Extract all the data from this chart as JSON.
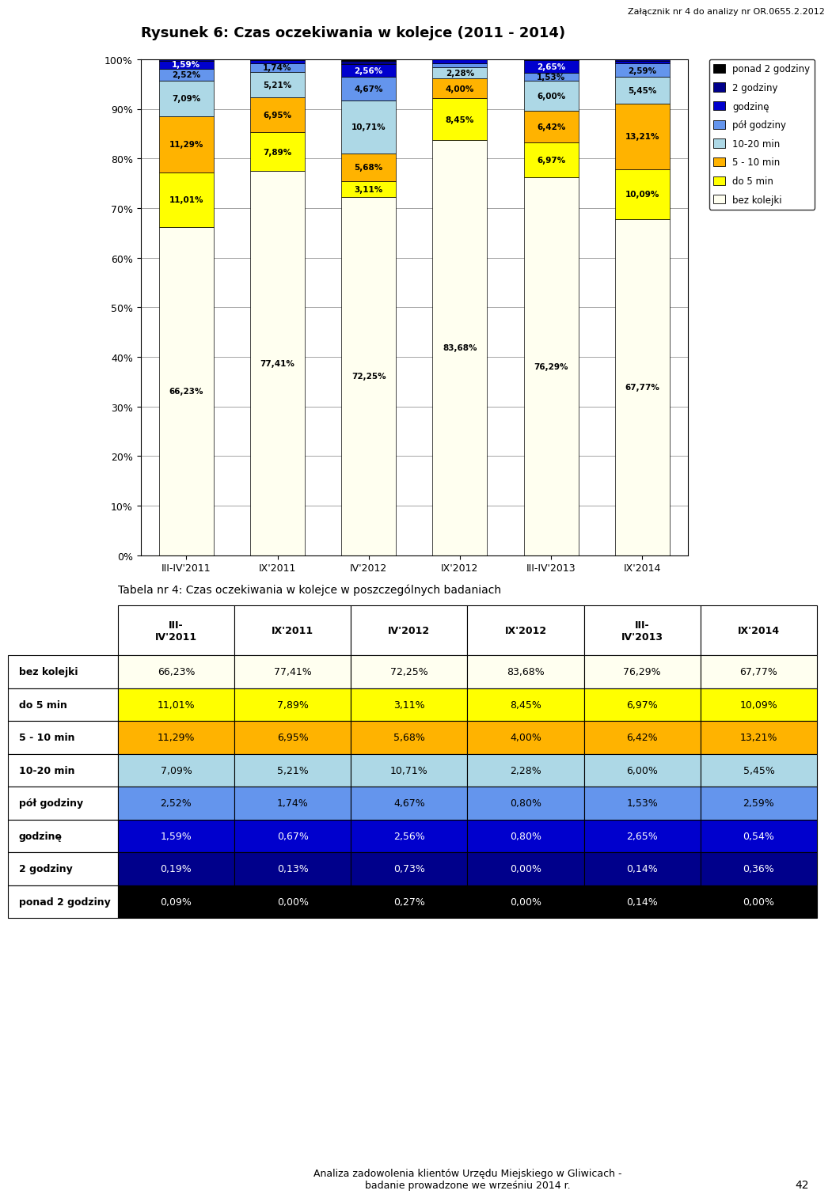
{
  "title": "Rysunek 6: Czas oczekiwania w kolejce (2011 - 2014)",
  "header_text": "Załącznik nr 4 do analizy nr OR.0655.2.2012",
  "categories": [
    "III-IV'2011",
    "IX'2011",
    "IV'2012",
    "IX'2012",
    "III-IV'2013",
    "IX'2014"
  ],
  "series": [
    {
      "label": "bez kolejki",
      "color": "#FFFFF0",
      "values": [
        66.23,
        77.41,
        72.25,
        83.68,
        76.29,
        67.77
      ]
    },
    {
      "label": "do 5 min",
      "color": "#FFFF00",
      "values": [
        11.01,
        7.89,
        3.11,
        8.45,
        6.97,
        10.09
      ]
    },
    {
      "label": "5 - 10 min",
      "color": "#FFB300",
      "values": [
        11.29,
        6.95,
        5.68,
        4.0,
        6.42,
        13.21
      ]
    },
    {
      "label": "10-20 min",
      "color": "#ADD8E6",
      "values": [
        7.09,
        5.21,
        10.71,
        2.28,
        6.0,
        5.45
      ]
    },
    {
      "label": "pół godziny",
      "color": "#6495ED",
      "values": [
        2.52,
        1.74,
        4.67,
        0.8,
        1.53,
        2.59
      ]
    },
    {
      "label": "godzinę",
      "color": "#0000CD",
      "values": [
        1.59,
        0.67,
        2.56,
        0.8,
        2.65,
        0.54
      ]
    },
    {
      "label": "2 godziny",
      "color": "#00008B",
      "values": [
        0.19,
        0.13,
        0.73,
        0.0,
        0.14,
        0.36
      ]
    },
    {
      "label": "ponad 2 godziny",
      "color": "#000000",
      "values": [
        0.09,
        0.0,
        0.27,
        0.0,
        0.14,
        0.0
      ]
    }
  ],
  "ylim": [
    0,
    100
  ],
  "yticks": [
    0,
    10,
    20,
    30,
    40,
    50,
    60,
    70,
    80,
    90,
    100
  ],
  "footer_text": "Analiza zadowolenia klientów Urzędu Miejskiego w Gliwicach -\nbadanie prowadzone we wrześniu 2014 r.",
  "page_number": "42",
  "table_title": "Tabela nr 4: Czas oczekiwania w kolejce w poszczególnych badaniach",
  "table_col_headers": [
    "III-\nIV'2011",
    "IX'2011",
    "IV'2012",
    "IX'2012",
    "III-\nIV'2013",
    "IX'2014"
  ],
  "table_row_labels": [
    "bez kolejki",
    "do 5 min",
    "5 - 10 min",
    "10-20 min",
    "pół godziny",
    "godzinę",
    "2 godziny",
    "ponad 2 godziny"
  ],
  "table_data": [
    [
      "66,23%",
      "77,41%",
      "72,25%",
      "83,68%",
      "76,29%",
      "67,77%"
    ],
    [
      "11,01%",
      "7,89%",
      "3,11%",
      "8,45%",
      "6,97%",
      "10,09%"
    ],
    [
      "11,29%",
      "6,95%",
      "5,68%",
      "4,00%",
      "6,42%",
      "13,21%"
    ],
    [
      "7,09%",
      "5,21%",
      "10,71%",
      "2,28%",
      "6,00%",
      "5,45%"
    ],
    [
      "2,52%",
      "1,74%",
      "4,67%",
      "0,80%",
      "1,53%",
      "2,59%"
    ],
    [
      "1,59%",
      "0,67%",
      "2,56%",
      "0,80%",
      "2,65%",
      "0,54%"
    ],
    [
      "0,19%",
      "0,13%",
      "0,73%",
      "0,00%",
      "0,14%",
      "0,36%"
    ],
    [
      "0,09%",
      "0,00%",
      "0,27%",
      "0,00%",
      "0,14%",
      "0,00%"
    ]
  ],
  "table_row_colors": [
    "#FFFFF0",
    "#FFFF00",
    "#FFB300",
    "#ADD8E6",
    "#6495ED",
    "#0000CD",
    "#00008B",
    "#000000"
  ],
  "table_text_colors": [
    "#000000",
    "#000000",
    "#000000",
    "#000000",
    "#000000",
    "#FFFFFF",
    "#FFFFFF",
    "#FFFFFF"
  ],
  "label_threshold": 1.5
}
